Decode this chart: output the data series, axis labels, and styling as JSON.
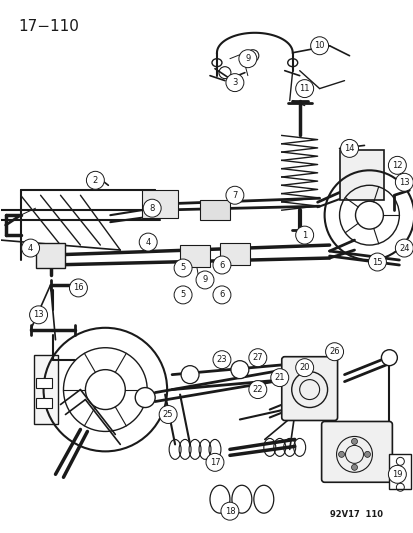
{
  "title_text": "17−110",
  "footer_text": "92V17  110",
  "background_color": "#ffffff",
  "fig_width": 4.14,
  "fig_height": 5.33,
  "dpi": 100,
  "title_fontsize": 11,
  "footer_fontsize": 6,
  "line_color": "#1a1a1a",
  "image_data": ""
}
